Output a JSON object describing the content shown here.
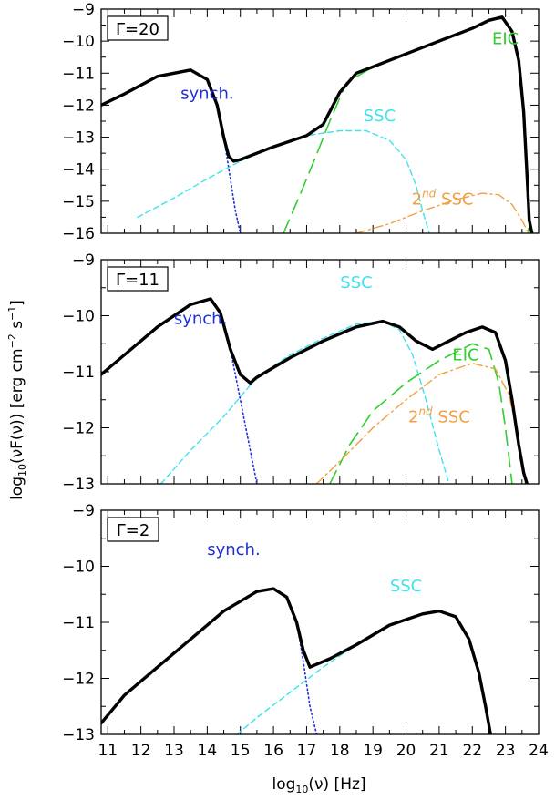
{
  "figure": {
    "xlabel_prefix": "log",
    "xlabel_sub": "10",
    "xlabel_suffix": "(ν)  [Hz]",
    "ylabel_prefix": "log",
    "ylabel_sub": "10",
    "ylabel_mid": "(νF(ν))  [erg cm",
    "ylabel_exp1": "−2",
    "ylabel_s": " s",
    "ylabel_exp2": "−1",
    "ylabel_end": "]"
  },
  "colors": {
    "total": "#000000",
    "synch": "#1f2fd6",
    "ssc": "#3de3ee",
    "eic": "#2ecf2e",
    "ssc2": "#f0a040"
  },
  "chart_data": [
    {
      "type": "line",
      "panel_label": "Γ=20",
      "xlim": [
        10.8,
        24
      ],
      "ylim": [
        -16,
        -9
      ],
      "xticks": [
        "11",
        "12",
        "13",
        "14",
        "15",
        "16",
        "17",
        "18",
        "19",
        "20",
        "21",
        "22",
        "23",
        "24"
      ],
      "yticks": [
        "−16",
        "−15",
        "−14",
        "−13",
        "−12",
        "−11",
        "−10",
        "−9"
      ],
      "labels": [
        {
          "key": "synch",
          "text": "synch.",
          "x": 14.0,
          "y": -11.8
        },
        {
          "key": "ssc",
          "text": "SSC",
          "x": 19.2,
          "y": -12.5
        },
        {
          "key": "eic",
          "text": "EIC",
          "x": 23.0,
          "y": -10.1
        },
        {
          "key": "ssc2",
          "text": "2",
          "sup": "nd",
          "after": " SSC",
          "x": 21.1,
          "y": -15.1
        }
      ],
      "series": [
        {
          "key": "synch",
          "style": "dotted",
          "x": [
            10.8,
            11.5,
            12.5,
            13.5,
            14.0,
            14.3,
            14.5,
            14.7,
            14.85,
            15.0
          ],
          "y": [
            -12.0,
            -11.65,
            -11.1,
            -10.9,
            -11.2,
            -12.0,
            -13.0,
            -14.3,
            -15.3,
            -16.0
          ]
        },
        {
          "key": "ssc",
          "style": "dashed",
          "x": [
            11.9,
            13.0,
            14.0,
            15.0,
            16.0,
            17.0,
            18.0,
            18.8,
            19.5,
            20.0,
            20.3,
            20.5,
            20.7
          ],
          "y": [
            -15.5,
            -14.9,
            -14.3,
            -13.75,
            -13.3,
            -12.95,
            -12.8,
            -12.8,
            -13.1,
            -13.7,
            -14.5,
            -15.3,
            -16.0
          ]
        },
        {
          "key": "eic",
          "style": "longdash",
          "x": [
            16.3,
            16.8,
            17.2,
            17.7,
            18.2,
            19.0,
            20.0,
            21.0,
            22.0,
            22.5,
            22.9,
            23.2,
            23.4,
            23.55,
            23.65,
            23.7
          ],
          "y": [
            -16.0,
            -14.8,
            -13.8,
            -12.5,
            -11.3,
            -10.8,
            -10.4,
            -10.0,
            -9.6,
            -9.35,
            -9.3,
            -9.7,
            -10.6,
            -12.2,
            -14.2,
            -16.0
          ]
        },
        {
          "key": "ssc2",
          "style": "dashdot",
          "x": [
            18.5,
            19.5,
            20.5,
            21.5,
            22.3,
            22.8,
            23.2,
            23.5,
            23.7
          ],
          "y": [
            -16.0,
            -15.7,
            -15.3,
            -14.95,
            -14.75,
            -14.8,
            -15.1,
            -15.6,
            -16.0
          ]
        },
        {
          "key": "total",
          "style": "solid",
          "x": [
            10.8,
            11.5,
            12.5,
            13.5,
            14.0,
            14.3,
            14.5,
            14.65,
            14.8,
            15.0,
            16.0,
            17.0,
            17.5,
            18.0,
            18.5,
            19.0,
            20.0,
            21.0,
            22.0,
            22.5,
            22.9,
            23.2,
            23.4,
            23.55,
            23.65,
            23.72,
            23.8
          ],
          "y": [
            -12.0,
            -11.65,
            -11.1,
            -10.9,
            -11.2,
            -12.0,
            -13.0,
            -13.6,
            -13.75,
            -13.7,
            -13.3,
            -12.95,
            -12.6,
            -11.6,
            -11.0,
            -10.8,
            -10.4,
            -10.0,
            -9.6,
            -9.35,
            -9.25,
            -9.7,
            -10.6,
            -12.2,
            -14.2,
            -15.6,
            -16.0
          ]
        }
      ]
    },
    {
      "type": "line",
      "panel_label": "Γ=11",
      "xlim": [
        10.8,
        24
      ],
      "ylim": [
        -13,
        -9
      ],
      "xticks": [
        "11",
        "12",
        "13",
        "14",
        "15",
        "16",
        "17",
        "18",
        "19",
        "20",
        "21",
        "22",
        "23",
        "24"
      ],
      "yticks": [
        "−13",
        "−12",
        "−11",
        "−10",
        "−9"
      ],
      "labels": [
        {
          "key": "synch",
          "text": "synch.",
          "x": 13.8,
          "y": -10.15
        },
        {
          "key": "ssc",
          "text": "SSC",
          "x": 18.5,
          "y": -9.5
        },
        {
          "key": "eic",
          "text": "EIC",
          "x": 21.8,
          "y": -10.8
        },
        {
          "key": "ssc2",
          "text": "2",
          "sup": "nd",
          "after": " SSC",
          "x": 21.0,
          "y": -11.9
        }
      ],
      "series": [
        {
          "key": "synch",
          "style": "dotted",
          "x": [
            10.8,
            11.5,
            12.5,
            13.5,
            14.1,
            14.4,
            14.7,
            15.0,
            15.3,
            15.5
          ],
          "y": [
            -11.05,
            -10.7,
            -10.2,
            -9.8,
            -9.7,
            -9.95,
            -10.6,
            -11.5,
            -12.4,
            -13.0
          ]
        },
        {
          "key": "ssc",
          "style": "dashed",
          "x": [
            12.6,
            13.5,
            14.5,
            15.5,
            16.5,
            17.5,
            18.5,
            19.3,
            19.8,
            20.2,
            20.6,
            21.0,
            21.3
          ],
          "y": [
            -13.0,
            -12.4,
            -11.8,
            -11.1,
            -10.7,
            -10.4,
            -10.15,
            -10.1,
            -10.25,
            -10.7,
            -11.5,
            -12.4,
            -13.0
          ]
        },
        {
          "key": "eic",
          "style": "longdash",
          "x": [
            17.7,
            18.3,
            19.0,
            20.0,
            21.0,
            22.0,
            22.5,
            22.8,
            23.0,
            23.1,
            23.2
          ],
          "y": [
            -13.0,
            -12.3,
            -11.7,
            -11.2,
            -10.8,
            -10.5,
            -10.6,
            -11.2,
            -12.0,
            -12.5,
            -13.0
          ]
        },
        {
          "key": "ssc2",
          "style": "dashdot",
          "x": [
            17.3,
            18.0,
            19.0,
            20.0,
            21.0,
            22.0,
            22.7,
            23.1,
            23.4,
            23.6
          ],
          "y": [
            -13.0,
            -12.6,
            -12.0,
            -11.5,
            -11.05,
            -10.85,
            -10.95,
            -11.4,
            -12.2,
            -13.0
          ]
        },
        {
          "key": "total",
          "style": "solid",
          "x": [
            10.8,
            11.5,
            12.5,
            13.5,
            14.1,
            14.4,
            14.7,
            15.0,
            15.3,
            15.5,
            16.5,
            17.5,
            18.5,
            19.3,
            19.8,
            20.3,
            20.8,
            21.3,
            21.8,
            22.3,
            22.7,
            23.0,
            23.2,
            23.4,
            23.55,
            23.65
          ],
          "y": [
            -11.05,
            -10.7,
            -10.2,
            -9.8,
            -9.7,
            -9.95,
            -10.6,
            -11.05,
            -11.2,
            -11.1,
            -10.75,
            -10.45,
            -10.2,
            -10.1,
            -10.2,
            -10.45,
            -10.6,
            -10.45,
            -10.3,
            -10.2,
            -10.3,
            -10.8,
            -11.5,
            -12.3,
            -12.8,
            -13.0
          ]
        }
      ]
    },
    {
      "type": "line",
      "panel_label": "Γ=2",
      "xlim": [
        10.8,
        24
      ],
      "ylim": [
        -13,
        -9
      ],
      "xticks": [
        "11",
        "12",
        "13",
        "14",
        "15",
        "16",
        "17",
        "18",
        "19",
        "20",
        "21",
        "22",
        "23",
        "24"
      ],
      "yticks": [
        "−13",
        "−12",
        "−11",
        "−10",
        "−9"
      ],
      "labels": [
        {
          "key": "synch",
          "text": "synch.",
          "x": 14.8,
          "y": -9.8
        },
        {
          "key": "ssc",
          "text": "SSC",
          "x": 20.0,
          "y": -10.45
        }
      ],
      "series": [
        {
          "key": "synch",
          "style": "dotted",
          "x": [
            10.8,
            11.5,
            12.5,
            13.5,
            14.5,
            15.5,
            16.0,
            16.4,
            16.7,
            16.9,
            17.1,
            17.3
          ],
          "y": [
            -12.8,
            -12.3,
            -11.8,
            -11.3,
            -10.8,
            -10.45,
            -10.4,
            -10.55,
            -11.0,
            -11.7,
            -12.5,
            -13.0
          ]
        },
        {
          "key": "ssc",
          "style": "dashed",
          "x": [
            14.9,
            15.5,
            16.5,
            17.5,
            18.5,
            19.5,
            20.5,
            21.0,
            21.5,
            21.9,
            22.2,
            22.4,
            22.55
          ],
          "y": [
            -13.0,
            -12.7,
            -12.25,
            -11.8,
            -11.4,
            -11.05,
            -10.85,
            -10.8,
            -10.9,
            -11.3,
            -11.9,
            -12.5,
            -13.0
          ]
        },
        {
          "key": "total",
          "style": "solid",
          "x": [
            10.8,
            11.5,
            12.5,
            13.5,
            14.5,
            15.5,
            16.0,
            16.4,
            16.7,
            16.9,
            17.1,
            17.3,
            17.7,
            18.5,
            19.5,
            20.5,
            21.0,
            21.5,
            21.9,
            22.2,
            22.4,
            22.55
          ],
          "y": [
            -12.8,
            -12.3,
            -11.8,
            -11.3,
            -10.8,
            -10.45,
            -10.4,
            -10.55,
            -11.0,
            -11.5,
            -11.8,
            -11.75,
            -11.65,
            -11.4,
            -11.05,
            -10.85,
            -10.8,
            -10.9,
            -11.3,
            -11.9,
            -12.5,
            -13.0
          ]
        }
      ]
    }
  ]
}
